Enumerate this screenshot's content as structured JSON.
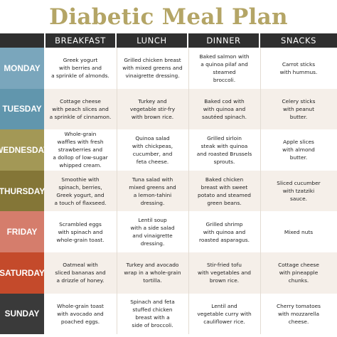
{
  "title": "Diabetic Meal Plan",
  "columns": [
    "BREAKFAST",
    "LUNCH",
    "DINNER",
    "SNACKS"
  ],
  "colors": {
    "title": "#b4a566",
    "header_bg": "#2f2f2f",
    "day_colors": [
      "#7aa6bc",
      "#6196ad",
      "#a39856",
      "#847637",
      "#d57d6c",
      "#c44a2b",
      "#3a3a3a"
    ],
    "alt_row_bg": "#f5efe9"
  },
  "days": [
    {
      "label": "MONDAY",
      "breakfast": "Greek yogurt\nwith berries and\na sprinkle of almonds.",
      "lunch": "Grilled chicken breast\nwith mixed greens and\nvinaigrette dressing.",
      "dinner": "Baked salmon with\na quinoa pilaf and steamed\nbroccoli.",
      "snacks": "Carrot sticks\nwith hummus."
    },
    {
      "label": "TUESDAY",
      "breakfast": "Cottage cheese\nwith peach slices and\na sprinkle of cinnamon.",
      "lunch": "Turkey and\nvegetable stir-fry\nwith brown rice.",
      "dinner": "Baked cod with\nwith quinoa and\nsautéed spinach.",
      "snacks": "Celery sticks\nwith peanut\nbutter."
    },
    {
      "label": "WEDNESDAY",
      "breakfast": "Whole-grain\nwaffles with fresh\nstrawberries and\na dollop of low-sugar\nwhipped cream.",
      "lunch": "Quinoa salad\nwith chickpeas,\ncucumber, and\nfeta cheese.",
      "dinner": "Grilled sirloin\nsteak with quinoa\nand roasted Brussels\nsprouts.",
      "snacks": "Apple slices\nwith almond\nbutter."
    },
    {
      "label": "THURSDAY",
      "breakfast": "Smoothie with\nspinach, berries,\nGreek yogurt, and\na touch of flaxseed.",
      "lunch": "Tuna salad with\nmixed greens and\na lemon-tahini\ndressing.",
      "dinner": "Baked chicken\nbreast with sweet\npotato and steamed\ngreen beans.",
      "snacks": "Sliced cucumber\nwith tzatziki\nsauce."
    },
    {
      "label": "FRIDAY",
      "breakfast": "Scrambled eggs\nwith spinach and\nwhole-grain toast.",
      "lunch": "Lentil soup\nwith a side salad\nand vinaigrette\ndressing.",
      "dinner": "Grilled shrimp\nwith quinoa and\nroasted asparagus.",
      "snacks": "Mixed nuts"
    },
    {
      "label": "SATURDAY",
      "breakfast": "Oatmeal with\nsliced bananas and\na drizzle of honey.",
      "lunch": "Turkey and avocado\nwrap in a whole-grain\ntortilla.",
      "dinner": "Stir-fried tofu\nwith vegetables and\nbrown rice.",
      "snacks": "Cottage cheese\nwith pineapple\nchunks."
    },
    {
      "label": "SUNDAY",
      "breakfast": "Whole-grain toast\nwith avocado and\npoached eggs.",
      "lunch": "Spinach and feta\nstuffed chicken\nbreast with a\nside of broccoli.",
      "dinner": "Lentil and\nvegetable curry with\ncauliflower rice.",
      "snacks": "Cherry tomatoes\nwith mozzarella\ncheese."
    }
  ]
}
